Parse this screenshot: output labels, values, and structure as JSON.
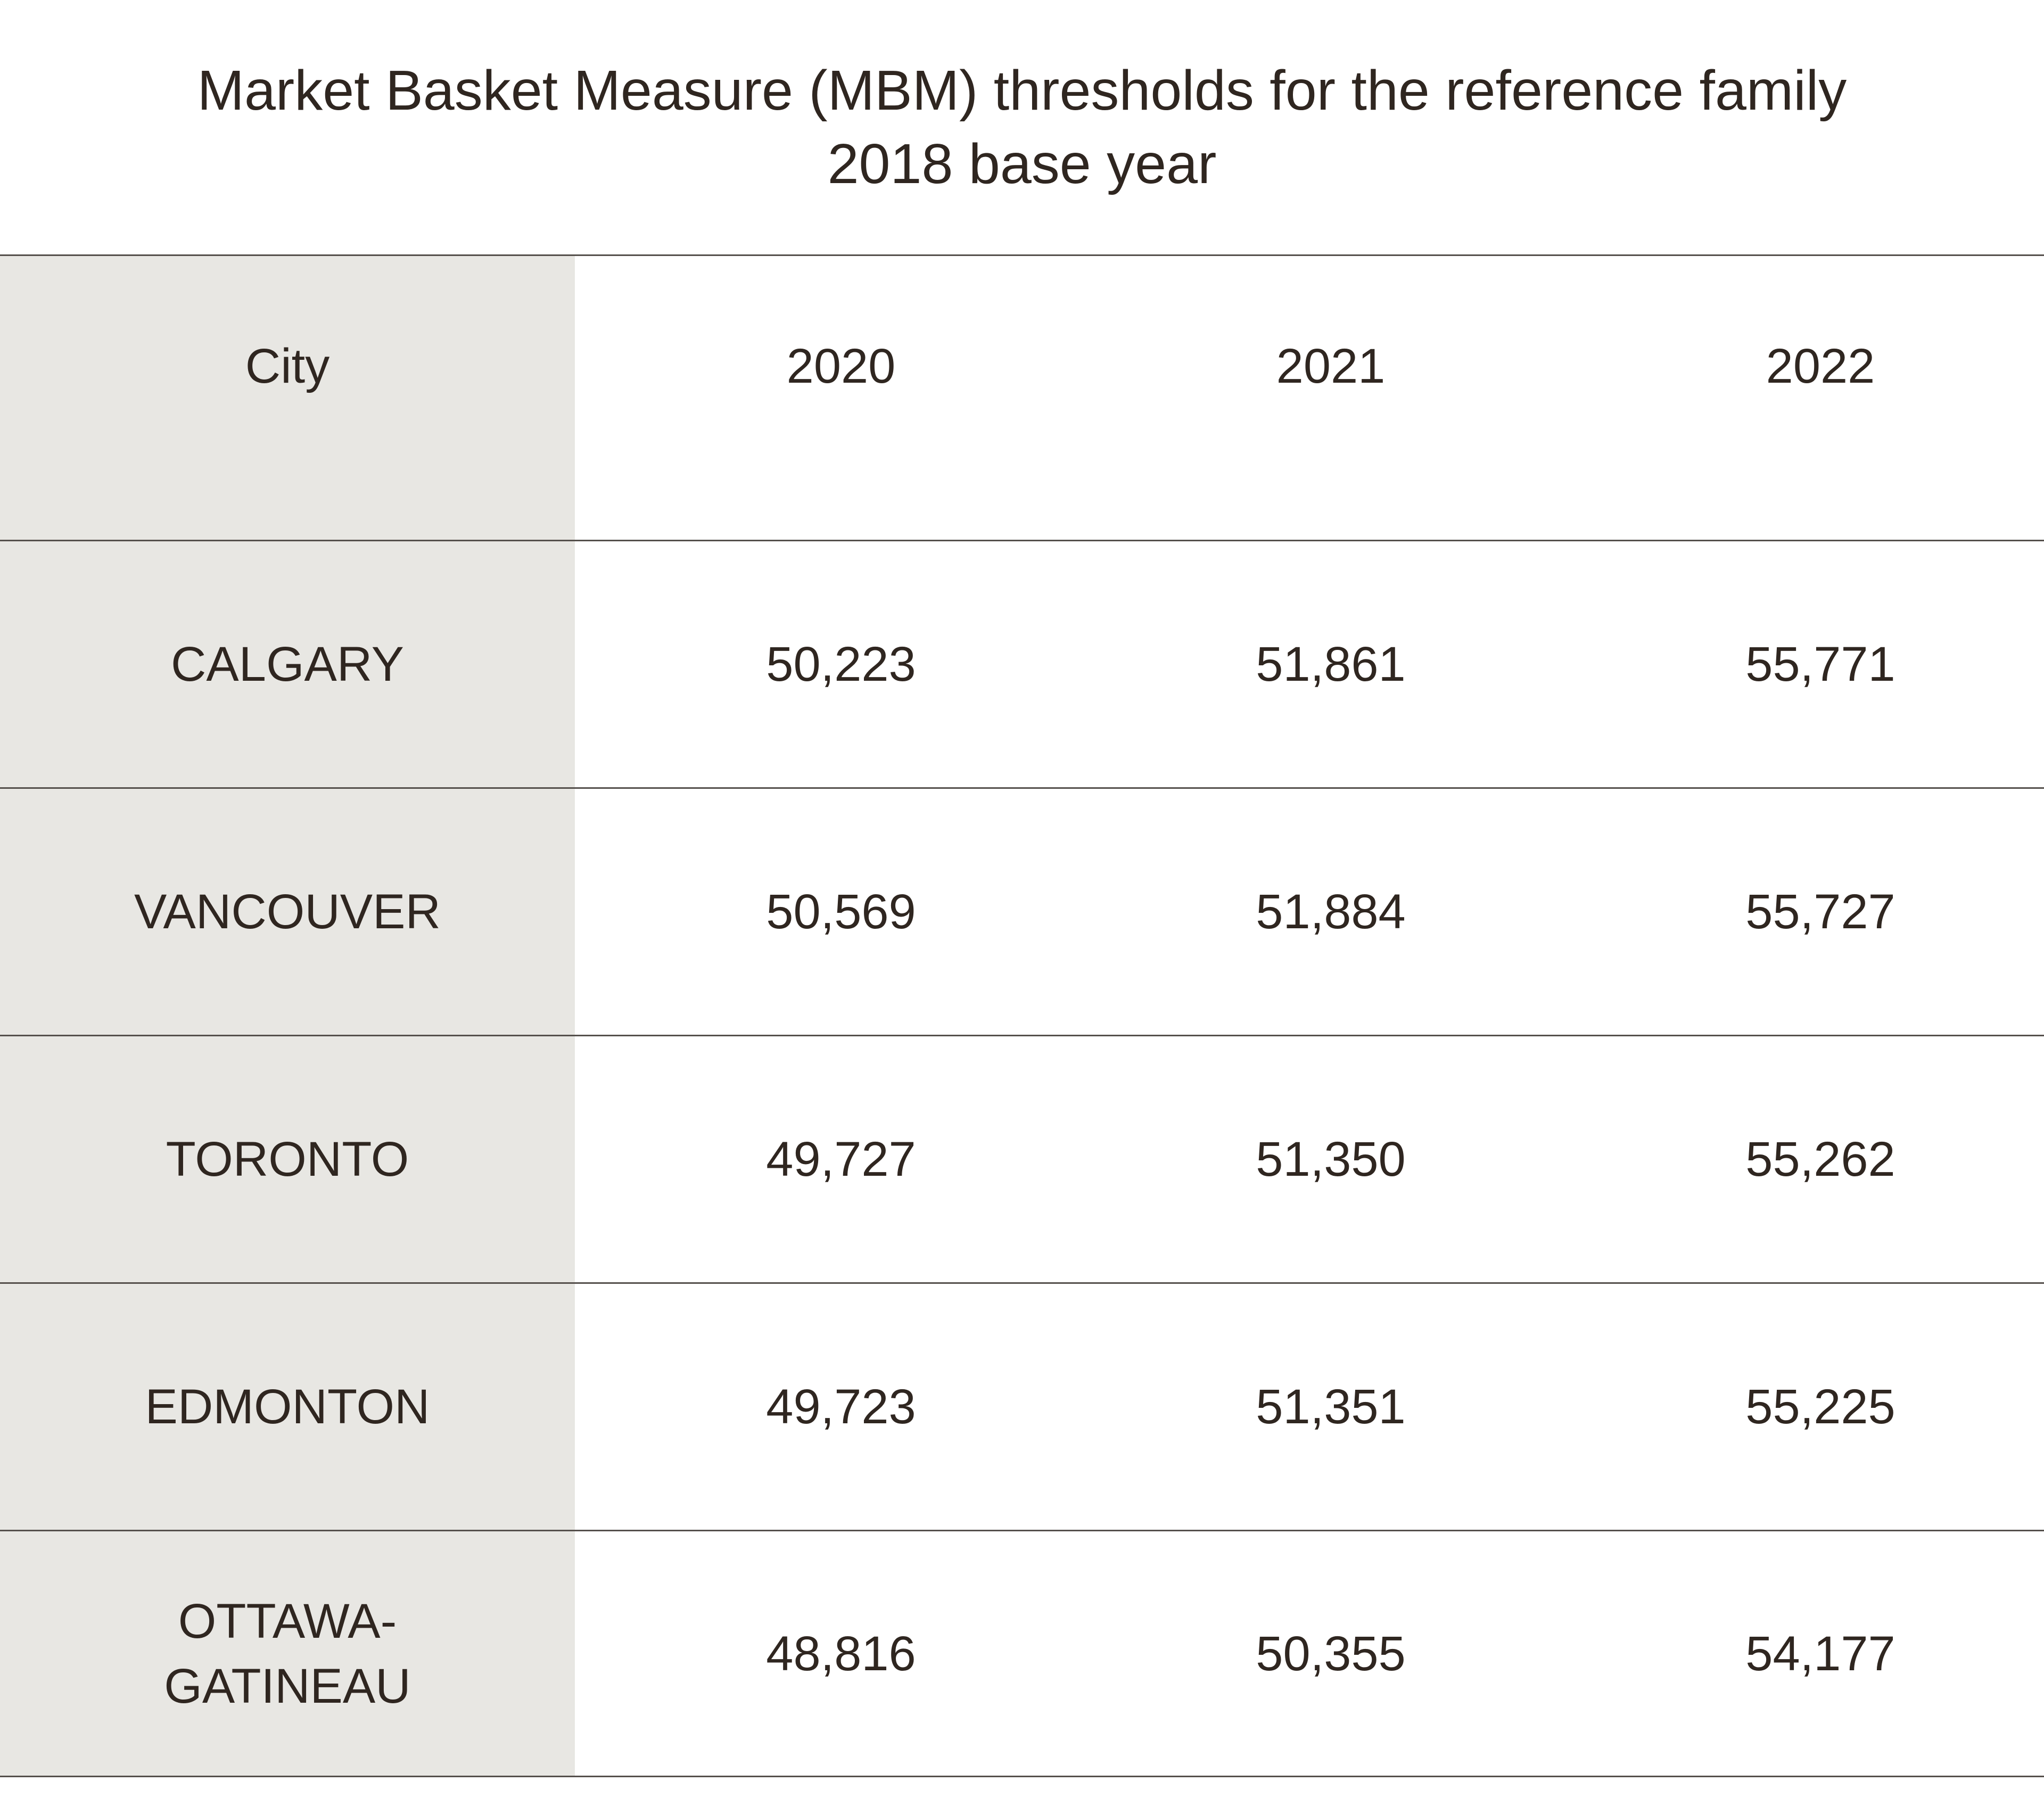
{
  "chart_data": {
    "type": "table",
    "title": "Market Basket Measure (MBM) thresholds for the reference family",
    "subtitle": "2018 base year",
    "columns": [
      "City",
      "2020",
      "2021",
      "2022"
    ],
    "rows": [
      {
        "city": "CALGARY",
        "values": [
          "50,223",
          "51,861",
          "55,771"
        ]
      },
      {
        "city": "VANCOUVER",
        "values": [
          "50,569",
          "51,884",
          "55,727"
        ]
      },
      {
        "city": "TORONTO",
        "values": [
          "49,727",
          "51,350",
          "55,262"
        ]
      },
      {
        "city": "EDMONTON",
        "values": [
          "49,723",
          "51,351",
          "55,225"
        ]
      },
      {
        "city": "OTTAWA-\nGATINEAU",
        "values": [
          "48,816",
          "50,355",
          "54,177"
        ]
      }
    ]
  }
}
